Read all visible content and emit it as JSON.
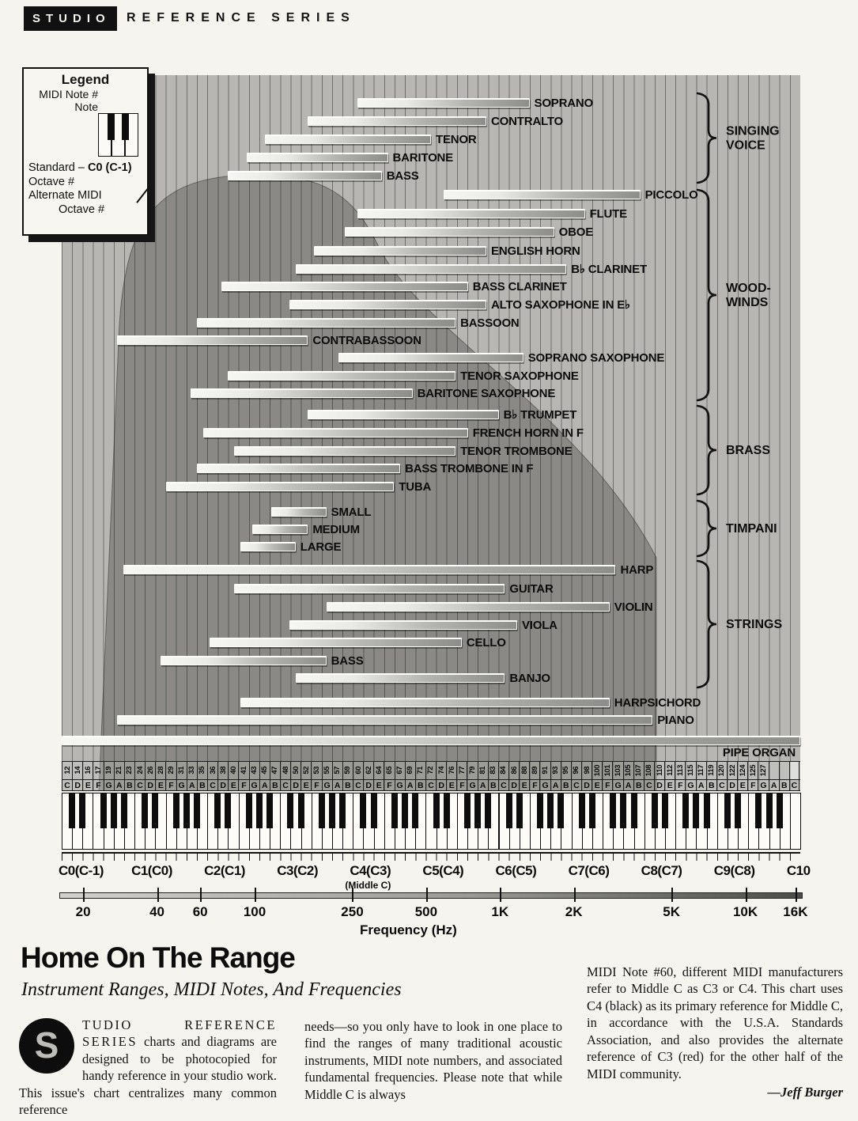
{
  "banner": {
    "studio": "STUDIO",
    "series": "REFERENCE SERIES"
  },
  "legend": {
    "title": "Legend",
    "midi_note_label": "MIDI Note #",
    "note_label": "Note",
    "midi_note_cells": [
      "12",
      "14",
      "16"
    ],
    "note_cells": [
      "C",
      "D",
      "E"
    ],
    "standard_prefix": "Standard – ",
    "standard_value": "C0 (C-1)",
    "standard_suffix": "Octave #",
    "alternate_line1": "Alternate MIDI",
    "alternate_line2": "Octave #"
  },
  "chart_data": {
    "type": "bar",
    "orientation": "horizontal-range",
    "x_axis": {
      "unit": "MIDI note number",
      "min": 12,
      "max": 132
    },
    "groups": [
      {
        "label": [
          "SINGING",
          "VOICE"
        ],
        "brace": [
          118,
          231
        ],
        "instruments": [
          {
            "name": "SOPRANO",
            "range": [
              60,
              88
            ],
            "y": 130
          },
          {
            "name": "CONTRALTO",
            "range": [
              52,
              81
            ],
            "y": 153
          },
          {
            "name": "TENOR",
            "range": [
              45,
              72
            ],
            "y": 176
          },
          {
            "name": "BARITONE",
            "range": [
              42,
              65
            ],
            "y": 199
          },
          {
            "name": "BASS",
            "range": [
              39,
              64
            ],
            "y": 222
          }
        ]
      },
      {
        "label": [
          "WOOD-",
          "WINDS"
        ],
        "brace": [
          240,
          506
        ],
        "instruments": [
          {
            "name": "PICCOLO",
            "range": [
              74,
              106
            ],
            "y": 246
          },
          {
            "name": "FLUTE",
            "range": [
              60,
              97
            ],
            "y": 270
          },
          {
            "name": "OBOE",
            "range": [
              58,
              92
            ],
            "y": 293
          },
          {
            "name": "ENGLISH HORN",
            "range": [
              53,
              81
            ],
            "y": 317
          },
          {
            "name": "B♭ CLARINET",
            "range": [
              50,
              94
            ],
            "y": 340
          },
          {
            "name": "BASS CLARINET",
            "range": [
              38,
              78
            ],
            "y": 362
          },
          {
            "name": "ALTO SAXOPHONE IN E♭",
            "range": [
              49,
              81
            ],
            "y": 385
          },
          {
            "name": "BASSOON",
            "range": [
              34,
              76
            ],
            "y": 408
          },
          {
            "name": "CONTRABASSOON",
            "range": [
              21,
              52
            ],
            "y": 430
          },
          {
            "name": "SOPRANO SAXOPHONE",
            "range": [
              57,
              87
            ],
            "y": 452
          },
          {
            "name": "TENOR SAXOPHONE",
            "range": [
              39,
              76
            ],
            "y": 475
          },
          {
            "name": "BARITONE SAXOPHONE",
            "range": [
              33,
              69
            ],
            "y": 497
          }
        ]
      },
      {
        "label": [
          "BRASS"
        ],
        "brace": [
          513,
          625
        ],
        "instruments": [
          {
            "name": "B♭ TRUMPET",
            "range": [
              52,
              83
            ],
            "y": 524
          },
          {
            "name": "FRENCH HORN IN F",
            "range": [
              35,
              78
            ],
            "y": 547
          },
          {
            "name": "TENOR TROMBONE",
            "range": [
              40,
              76
            ],
            "y": 570
          },
          {
            "name": "BASS TROMBONE IN F",
            "range": [
              34,
              67
            ],
            "y": 592
          },
          {
            "name": "TUBA",
            "range": [
              29,
              66
            ],
            "y": 615
          }
        ]
      },
      {
        "label": [
          "TIMPANI"
        ],
        "brace": [
          633,
          703
        ],
        "instruments": [
          {
            "name": "SMALL",
            "range": [
              46,
              55
            ],
            "y": 647
          },
          {
            "name": "MEDIUM",
            "range": [
              43,
              52
            ],
            "y": 669
          },
          {
            "name": "LARGE",
            "range": [
              41,
              50
            ],
            "y": 691
          }
        ]
      },
      {
        "label": [
          "STRINGS"
        ],
        "brace": [
          709,
          869
        ],
        "instruments": [
          {
            "name": "HARP",
            "range": [
              22,
              102
            ],
            "y": 720
          },
          {
            "name": "GUITAR",
            "range": [
              40,
              84
            ],
            "y": 744
          },
          {
            "name": "VIOLIN",
            "range": [
              55,
              101
            ],
            "y": 767
          },
          {
            "name": "VIOLA",
            "range": [
              49,
              86
            ],
            "y": 790
          },
          {
            "name": "CELLO",
            "range": [
              36,
              77
            ],
            "y": 812
          },
          {
            "name": "BASS",
            "range": [
              28,
              55
            ],
            "y": 835
          },
          {
            "name": "BANJO",
            "range": [
              50,
              84
            ],
            "y": 857
          }
        ]
      },
      {
        "label": null,
        "brace": null,
        "instruments": [
          {
            "name": "HARPSICHORD",
            "range": [
              41,
              101
            ],
            "y": 888
          },
          {
            "name": "PIANO",
            "range": [
              21,
              108
            ],
            "y": 910
          },
          {
            "name": "PIPE ORGAN",
            "range": [
              12,
              132
            ],
            "y": 936,
            "label_below": true
          }
        ]
      }
    ],
    "midi_numbers": [
      "12",
      "14",
      "16",
      "17",
      "19",
      "21",
      "23",
      "24",
      "26",
      "28",
      "29",
      "31",
      "33",
      "35",
      "36",
      "38",
      "40",
      "41",
      "43",
      "45",
      "47",
      "48",
      "50",
      "52",
      "53",
      "55",
      "57",
      "59",
      "60",
      "62",
      "64",
      "65",
      "67",
      "69",
      "71",
      "72",
      "74",
      "76",
      "77",
      "79",
      "81",
      "83",
      "84",
      "86",
      "88",
      "89",
      "91",
      "93",
      "95",
      "96",
      "98",
      "100",
      "101",
      "103",
      "105",
      "107",
      "108",
      "110",
      "112",
      "113",
      "115",
      "117",
      "119",
      "120",
      "122",
      "124",
      "125",
      "127"
    ],
    "note_letter_pattern": [
      "C",
      "D",
      "E",
      "F",
      "G",
      "A",
      "B"
    ],
    "white_key_count": 71,
    "octave_labels": [
      "C0(C-1)",
      "C1(C0)",
      "C2(C1)",
      "C3(C2)",
      "C4(C3)",
      "C5(C4)",
      "C6(C5)",
      "C7(C6)",
      "C8(C7)",
      "C9(C8)",
      "C10"
    ],
    "middle_c_note": "(Middle C)",
    "freq_axis": {
      "title": "Frequency (Hz)",
      "ticks": [
        {
          "label": "20",
          "hz": 20
        },
        {
          "label": "40",
          "hz": 40
        },
        {
          "label": "60",
          "hz": 60
        },
        {
          "label": "100",
          "hz": 100
        },
        {
          "label": "250",
          "hz": 250
        },
        {
          "label": "500",
          "hz": 500
        },
        {
          "label": "1K",
          "hz": 1000
        },
        {
          "label": "2K",
          "hz": 2000
        },
        {
          "label": "5K",
          "hz": 5000
        },
        {
          "label": "10K",
          "hz": 10000
        },
        {
          "label": "16K",
          "hz": 16000
        }
      ]
    }
  },
  "article": {
    "title": "Home On The Range",
    "subtitle": "Instrument Ranges, MIDI Notes, And Frequencies",
    "dropcap": "S",
    "col1_lead": "TUDIO REFERENCE SERIES",
    "col1_rest": " charts and diagrams are designed to be photocopied for handy reference in your studio work. This issue's chart centralizes many common reference",
    "col2": "needs—so you only have to look in one place to find the ranges of many traditional acoustic instruments, MIDI note numbers, and associated fundamental frequencies. Please note that while Middle C is always",
    "col3": "MIDI Note #60, different MIDI manufacturers refer to Middle C as C3 or C4. This chart uses C4 (black) as its primary reference for Middle C, in accordance with the U.S.A. Standards Association, and also provides the alternate reference of C3 (red) for the other half of the MIDI community.",
    "byline": "—Jeff Burger"
  }
}
